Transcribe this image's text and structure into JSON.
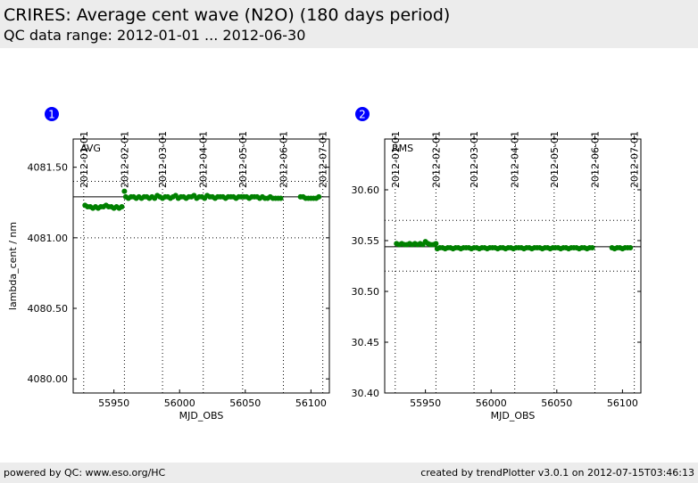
{
  "header": {
    "title": "CRIRES: Average cent wave (N2O) (180 days period)",
    "subtitle": "QC data range: 2012-01-01 ... 2012-06-30"
  },
  "footer": {
    "left": "powered by QC: www.eso.org/HC",
    "right": "created by trendPlotter v3.0.1 on 2012-07-15T03:46:13"
  },
  "colors": {
    "points": "#008000",
    "badge": "#0000ff",
    "header_bg": "#ececec"
  },
  "chart_data": [
    {
      "type": "scatter",
      "badge": "1",
      "panel_label": "AVG",
      "xlabel": "MJD_OBS",
      "ylabel": "lambda_cent / nm",
      "xlim": [
        55919,
        56114
      ],
      "ylim": [
        4079.9,
        4081.7
      ],
      "x_ticks": [
        55950,
        56000,
        56050,
        56100
      ],
      "x_tick_labels": [
        "55950",
        "56000",
        "56050",
        "56100"
      ],
      "y_ticks": [
        4080.0,
        4080.5,
        4081.0,
        4081.5
      ],
      "y_tick_labels": [
        "4080.00",
        "4080.50",
        "4081.00",
        "4081.50"
      ],
      "date_ticks": [
        {
          "label": "2012-01-01",
          "mjd": 55927
        },
        {
          "label": "2012-02-01",
          "mjd": 55958
        },
        {
          "label": "2012-03-01",
          "mjd": 55987
        },
        {
          "label": "2012-04-01",
          "mjd": 56018
        },
        {
          "label": "2012-05-01",
          "mjd": 56048
        },
        {
          "label": "2012-06-01",
          "mjd": 56079
        },
        {
          "label": "2012-07-01",
          "mjd": 56109
        }
      ],
      "mean_line": 4081.29,
      "sigma_lines": [
        4081.0,
        4081.4
      ],
      "series": [
        {
          "x": [
            55928,
            55930,
            55932,
            55934,
            55936,
            55938,
            55940,
            55942,
            55944,
            55946,
            55948,
            55950,
            55952,
            55954,
            55956,
            55958,
            55959,
            55961,
            55963,
            55965,
            55967,
            55969,
            55971,
            55973,
            55975,
            55977,
            55979,
            55981,
            55983,
            55985,
            55987,
            55989,
            55991,
            55993,
            55995,
            55997,
            55999,
            56001,
            56003,
            56005,
            56007,
            56009,
            56011,
            56013,
            56015,
            56017,
            56019,
            56021,
            56023,
            56025,
            56027,
            56029,
            56031,
            56033,
            56035,
            56037,
            56039,
            56041,
            56043,
            56045,
            56047,
            56049,
            56051,
            56053,
            56055,
            56057,
            56059,
            56061,
            56063,
            56065,
            56067,
            56069,
            56071,
            56073,
            56075,
            56077,
            56092,
            56094,
            56096,
            56098,
            56100,
            56102,
            56104,
            56106
          ],
          "y": [
            4081.23,
            4081.22,
            4081.22,
            4081.21,
            4081.22,
            4081.21,
            4081.22,
            4081.22,
            4081.23,
            4081.22,
            4081.22,
            4081.21,
            4081.22,
            4081.21,
            4081.22,
            4081.33,
            4081.29,
            4081.28,
            4081.29,
            4081.29,
            4081.28,
            4081.29,
            4081.28,
            4081.29,
            4081.29,
            4081.28,
            4081.29,
            4081.28,
            4081.3,
            4081.29,
            4081.28,
            4081.29,
            4081.29,
            4081.28,
            4081.29,
            4081.3,
            4081.28,
            4081.29,
            4081.29,
            4081.28,
            4081.29,
            4081.29,
            4081.3,
            4081.28,
            4081.29,
            4081.29,
            4081.28,
            4081.3,
            4081.29,
            4081.29,
            4081.28,
            4081.29,
            4081.29,
            4081.29,
            4081.28,
            4081.29,
            4081.29,
            4081.29,
            4081.28,
            4081.29,
            4081.29,
            4081.29,
            4081.29,
            4081.28,
            4081.29,
            4081.29,
            4081.29,
            4081.28,
            4081.29,
            4081.28,
            4081.28,
            4081.29,
            4081.28,
            4081.28,
            4081.28,
            4081.28,
            4081.29,
            4081.29,
            4081.28,
            4081.28,
            4081.28,
            4081.28,
            4081.28,
            4081.29
          ]
        }
      ]
    },
    {
      "type": "scatter",
      "badge": "2",
      "panel_label": "RMS",
      "xlabel": "MJD_OBS",
      "ylabel": "",
      "xlim": [
        55919,
        56114
      ],
      "ylim": [
        30.4,
        30.65
      ],
      "x_ticks": [
        55950,
        56000,
        56050,
        56100
      ],
      "x_tick_labels": [
        "55950",
        "56000",
        "56050",
        "56100"
      ],
      "y_ticks": [
        30.4,
        30.45,
        30.5,
        30.55,
        30.6
      ],
      "y_tick_labels": [
        "30.40",
        "30.45",
        "30.50",
        "30.55",
        "30.60"
      ],
      "date_ticks": [
        {
          "label": "2012-01-01",
          "mjd": 55927
        },
        {
          "label": "2012-02-01",
          "mjd": 55958
        },
        {
          "label": "2012-03-01",
          "mjd": 55987
        },
        {
          "label": "2012-04-01",
          "mjd": 56018
        },
        {
          "label": "2012-05-01",
          "mjd": 56048
        },
        {
          "label": "2012-06-01",
          "mjd": 56079
        },
        {
          "label": "2012-07-01",
          "mjd": 56109
        }
      ],
      "mean_line": 30.544,
      "sigma_lines": [
        30.52,
        30.57
      ],
      "series": [
        {
          "x": [
            55928,
            55930,
            55932,
            55934,
            55936,
            55938,
            55940,
            55942,
            55944,
            55946,
            55948,
            55950,
            55952,
            55954,
            55956,
            55958,
            55959,
            55961,
            55963,
            55965,
            55967,
            55969,
            55971,
            55973,
            55975,
            55977,
            55979,
            55981,
            55983,
            55985,
            55987,
            55989,
            55991,
            55993,
            55995,
            55997,
            55999,
            56001,
            56003,
            56005,
            56007,
            56009,
            56011,
            56013,
            56015,
            56017,
            56019,
            56021,
            56023,
            56025,
            56027,
            56029,
            56031,
            56033,
            56035,
            56037,
            56039,
            56041,
            56043,
            56045,
            56047,
            56049,
            56051,
            56053,
            56055,
            56057,
            56059,
            56061,
            56063,
            56065,
            56067,
            56069,
            56071,
            56073,
            56075,
            56077,
            56092,
            56094,
            56096,
            56098,
            56100,
            56102,
            56104,
            56106
          ],
          "y": [
            30.547,
            30.546,
            30.547,
            30.546,
            30.546,
            30.547,
            30.546,
            30.547,
            30.546,
            30.547,
            30.546,
            30.549,
            30.547,
            30.546,
            30.546,
            30.547,
            30.542,
            30.543,
            30.543,
            30.542,
            30.543,
            30.543,
            30.542,
            30.543,
            30.543,
            30.542,
            30.543,
            30.543,
            30.543,
            30.542,
            30.543,
            30.543,
            30.542,
            30.543,
            30.543,
            30.542,
            30.543,
            30.543,
            30.543,
            30.542,
            30.543,
            30.543,
            30.542,
            30.543,
            30.543,
            30.542,
            30.543,
            30.543,
            30.543,
            30.542,
            30.543,
            30.543,
            30.542,
            30.543,
            30.543,
            30.543,
            30.542,
            30.543,
            30.543,
            30.542,
            30.543,
            30.543,
            30.543,
            30.542,
            30.543,
            30.543,
            30.542,
            30.543,
            30.543,
            30.543,
            30.542,
            30.543,
            30.543,
            30.542,
            30.543,
            30.543,
            30.543,
            30.542,
            30.543,
            30.543,
            30.542,
            30.543,
            30.543,
            30.543
          ]
        }
      ]
    }
  ]
}
